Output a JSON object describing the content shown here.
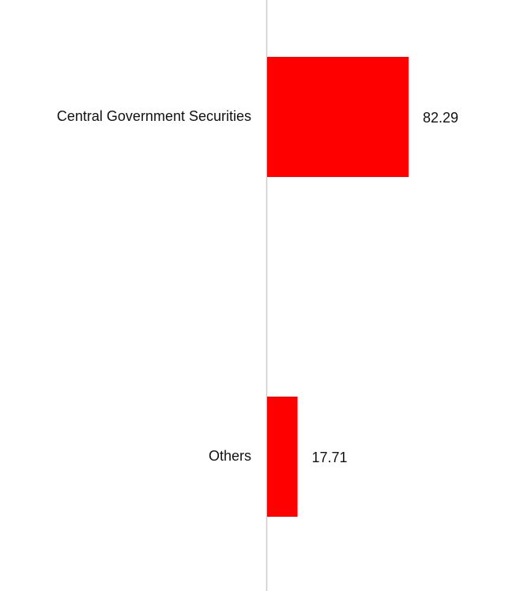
{
  "chart_data": {
    "type": "bar",
    "orientation": "horizontal",
    "categories": [
      "Central Government Securities",
      "Others"
    ],
    "values": [
      82.29,
      17.71
    ],
    "color": "#ff0000"
  }
}
